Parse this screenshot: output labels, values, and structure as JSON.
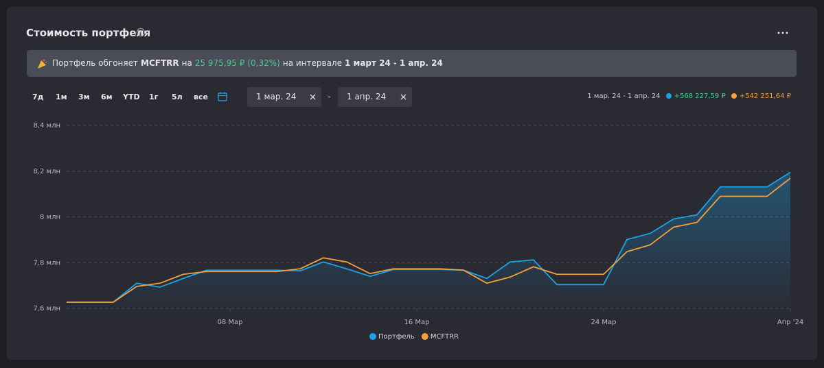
{
  "header": {
    "title": "Стоимость портфеля"
  },
  "banner": {
    "lead": "Портфель обгоняет",
    "benchmark": "MCFTRR",
    "by": "на",
    "amount": "25 975,95 ₽",
    "percent": "(0,32%)",
    "interval": "на интервале",
    "from": "1 март 24",
    "dash": "-",
    "to": "1 апр. 24"
  },
  "periods": [
    "7д",
    "1м",
    "3м",
    "6м",
    "YTD",
    "1г",
    "5л",
    "все"
  ],
  "date_from": "1 мар. 24",
  "date_separator": "-",
  "date_to": "1 апр. 24",
  "summary": {
    "range": "1 мар. 24 - 1 апр. 24",
    "changes": [
      "+568 227,59 ₽",
      "+542 251,64 ₽"
    ]
  },
  "chart_data": {
    "type": "line",
    "x": [
      "2024-03-01",
      "2024-03-02",
      "2024-03-03",
      "2024-03-04",
      "2024-03-05",
      "2024-03-06",
      "2024-03-07",
      "2024-03-08",
      "2024-03-09",
      "2024-03-10",
      "2024-03-11",
      "2024-03-12",
      "2024-03-13",
      "2024-03-14",
      "2024-03-15",
      "2024-03-16",
      "2024-03-17",
      "2024-03-18",
      "2024-03-19",
      "2024-03-20",
      "2024-03-21",
      "2024-03-22",
      "2024-03-23",
      "2024-03-24",
      "2024-03-25",
      "2024-03-26",
      "2024-03-27",
      "2024-03-28",
      "2024-03-29",
      "2024-03-30",
      "2024-03-31",
      "2024-04-01"
    ],
    "series": [
      {
        "name": "Портфель",
        "color": "#1aa3e8",
        "area": true,
        "values": [
          7.627,
          7.627,
          7.627,
          7.71,
          7.693,
          7.731,
          7.767,
          7.767,
          7.767,
          7.767,
          7.764,
          7.803,
          7.773,
          7.74,
          7.77,
          7.77,
          7.77,
          7.767,
          7.731,
          7.803,
          7.812,
          7.704,
          7.704,
          7.704,
          7.901,
          7.928,
          7.991,
          8.009,
          8.131,
          8.131,
          8.131,
          8.195
        ]
      },
      {
        "name": "MCFTRR",
        "color": "#f4a03c",
        "values": [
          7.627,
          7.627,
          7.627,
          7.696,
          7.71,
          7.749,
          7.761,
          7.761,
          7.761,
          7.761,
          7.773,
          7.821,
          7.803,
          7.752,
          7.773,
          7.773,
          7.773,
          7.767,
          7.71,
          7.737,
          7.782,
          7.749,
          7.749,
          7.749,
          7.848,
          7.878,
          7.955,
          7.976,
          8.09,
          8.09,
          8.09,
          8.169
        ]
      }
    ],
    "xlim": [
      "2024-03-01",
      "2024-04-01"
    ],
    "xticks": [
      {
        "value": "2024-03-08",
        "label": "08 Мар"
      },
      {
        "value": "2024-03-16",
        "label": "16 Мар"
      },
      {
        "value": "2024-03-24",
        "label": "24 Мар"
      },
      {
        "value": "2024-04-01",
        "label": "Апр '24"
      }
    ],
    "ylim": [
      7.6,
      8.4
    ],
    "yticks": [
      {
        "value": 7.6,
        "label": "7,6 млн"
      },
      {
        "value": 7.8,
        "label": "7,8 млн"
      },
      {
        "value": 8,
        "label": "8 млн"
      },
      {
        "value": 8.2,
        "label": "8,2 млн"
      },
      {
        "value": 8.4,
        "label": "8,4 млн"
      }
    ],
    "grid": true,
    "legend": "bottom"
  }
}
